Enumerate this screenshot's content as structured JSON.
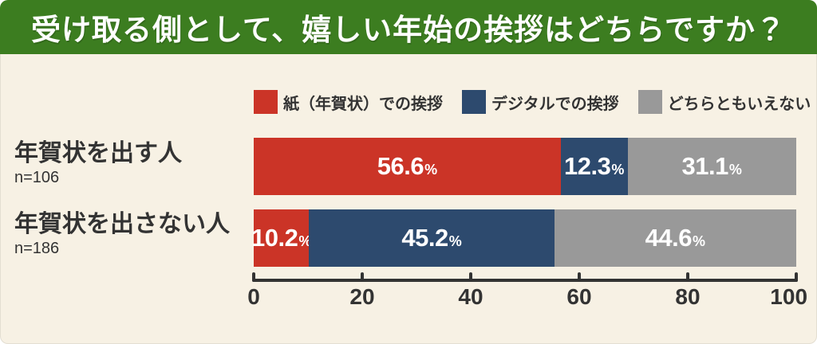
{
  "header": {
    "title": "受け取る側として、嬉しい年始の挨拶はどちらですか？"
  },
  "colors": {
    "background": "#F7F1E4",
    "header_bg": "#3C7D20",
    "text": "#333333",
    "axis": "#333333"
  },
  "chart_data": {
    "type": "bar",
    "orientation": "horizontal",
    "stacked": true,
    "title": "受け取る側として、嬉しい年始の挨拶はどちらですか？",
    "categories": [
      "年賀状を出す人",
      "年賀状を出さない人"
    ],
    "category_sublabels": [
      "n=106",
      "n=186"
    ],
    "series": [
      {
        "name": "紙（年賀状）での挨拶",
        "color": "#CB3427",
        "values": [
          56.6,
          10.2
        ]
      },
      {
        "name": "デジタルでの挨拶",
        "color": "#2D4A6E",
        "values": [
          12.3,
          45.2
        ]
      },
      {
        "name": "どちらともいえない",
        "color": "#999999",
        "values": [
          31.1,
          44.6
        ]
      }
    ],
    "xlim": [
      0,
      100
    ],
    "x_ticks": [
      "0",
      "20",
      "40",
      "60",
      "80",
      "100"
    ],
    "value_suffix": "%",
    "legend_position": "top",
    "grid": false
  }
}
